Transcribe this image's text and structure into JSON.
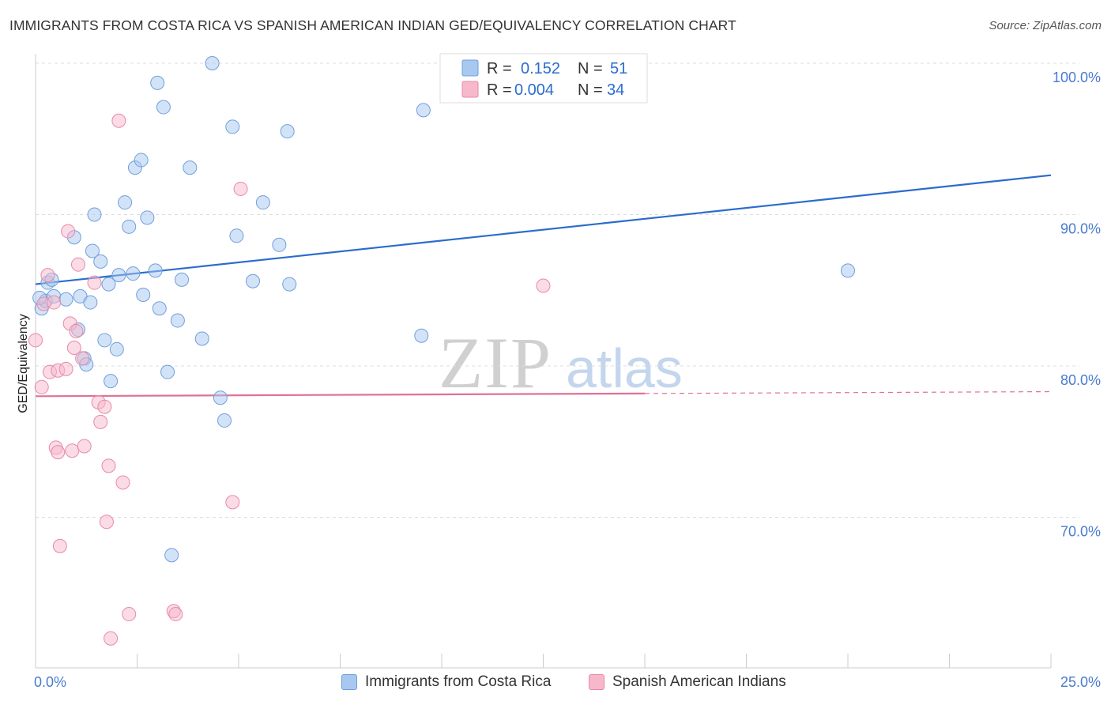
{
  "title": "IMMIGRANTS FROM COSTA RICA VS SPANISH AMERICAN INDIAN GED/EQUIVALENCY CORRELATION CHART",
  "source": "Source: ZipAtlas.com",
  "watermark": {
    "zip": "ZIP",
    "atlas": "atlas"
  },
  "colors": {
    "blue_fill": "#a8c8f0",
    "blue_stroke": "#6f9fdc",
    "blue_line": "#2b6ccc",
    "pink_fill": "#f7b8cc",
    "pink_stroke": "#e88aa8",
    "pink_line": "#e07098",
    "tick_text": "#4a7bd0",
    "grid": "#dddddd"
  },
  "legend_top": [
    {
      "r_label": "R =",
      "r_value": "0.152",
      "n_label": "N =",
      "n_value": "51",
      "series": "blue"
    },
    {
      "r_label": "R =",
      "r_value": "0.004",
      "n_label": "N =",
      "n_value": "34",
      "series": "pink"
    }
  ],
  "chart_data": {
    "type": "scatter",
    "title": "IMMIGRANTS FROM COSTA RICA VS SPANISH AMERICAN INDIAN GED/EQUIVALENCY CORRELATION CHART",
    "xlabel": "",
    "ylabel": "GED/Equivalency",
    "xlim": [
      0,
      25
    ],
    "ylim": [
      60,
      102
    ],
    "x_tick_labels": [
      "0.0%",
      "25.0%"
    ],
    "y_ticks": [
      70,
      80,
      90,
      100
    ],
    "y_tick_labels": [
      "70.0%",
      "80.0%",
      "90.0%",
      "100.0%"
    ],
    "grid": true,
    "legend_position": "bottom",
    "series": [
      {
        "name": "Immigrants from Costa Rica",
        "color": "blue",
        "r": 0.152,
        "n": 51,
        "trend": {
          "x": [
            0,
            25
          ],
          "y": [
            85.4,
            92.6
          ],
          "dashed_from": null
        },
        "points": [
          [
            0.15,
            83.8
          ],
          [
            0.25,
            84.3
          ],
          [
            0.3,
            85.5
          ],
          [
            0.4,
            85.7
          ],
          [
            0.45,
            84.6
          ],
          [
            0.75,
            84.4
          ],
          [
            0.95,
            88.5
          ],
          [
            1.05,
            82.4
          ],
          [
            1.1,
            84.6
          ],
          [
            1.2,
            80.5
          ],
          [
            1.25,
            80.1
          ],
          [
            1.35,
            84.2
          ],
          [
            1.4,
            87.6
          ],
          [
            1.45,
            90.0
          ],
          [
            1.6,
            86.9
          ],
          [
            1.7,
            81.7
          ],
          [
            1.8,
            85.4
          ],
          [
            1.85,
            79.0
          ],
          [
            2.0,
            81.1
          ],
          [
            2.05,
            86.0
          ],
          [
            2.2,
            90.8
          ],
          [
            2.3,
            89.2
          ],
          [
            2.4,
            86.1
          ],
          [
            2.45,
            93.1
          ],
          [
            2.6,
            93.6
          ],
          [
            2.65,
            84.7
          ],
          [
            2.75,
            89.8
          ],
          [
            2.95,
            86.3
          ],
          [
            3.0,
            98.7
          ],
          [
            3.05,
            83.8
          ],
          [
            3.15,
            97.1
          ],
          [
            3.25,
            79.6
          ],
          [
            3.35,
            67.5
          ],
          [
            3.5,
            83.0
          ],
          [
            3.6,
            85.7
          ],
          [
            3.8,
            93.1
          ],
          [
            4.1,
            81.8
          ],
          [
            4.35,
            100.0
          ],
          [
            4.55,
            77.9
          ],
          [
            4.65,
            76.4
          ],
          [
            4.85,
            95.8
          ],
          [
            4.95,
            88.6
          ],
          [
            5.35,
            85.6
          ],
          [
            5.6,
            90.8
          ],
          [
            6.0,
            88.0
          ],
          [
            6.2,
            95.5
          ],
          [
            6.25,
            85.4
          ],
          [
            9.5,
            82.0
          ],
          [
            9.55,
            96.9
          ],
          [
            20.0,
            86.3
          ],
          [
            0.1,
            84.5
          ]
        ]
      },
      {
        "name": "Spanish American Indians",
        "color": "pink",
        "r": 0.004,
        "n": 34,
        "trend": {
          "x": [
            0,
            25
          ],
          "y": [
            78.0,
            78.3
          ],
          "dashed_from": 15
        },
        "points": [
          [
            0.0,
            81.7
          ],
          [
            0.15,
            78.6
          ],
          [
            0.2,
            84.1
          ],
          [
            0.3,
            86.0
          ],
          [
            0.35,
            79.6
          ],
          [
            0.45,
            84.2
          ],
          [
            0.5,
            74.6
          ],
          [
            0.55,
            79.7
          ],
          [
            0.55,
            74.3
          ],
          [
            0.6,
            68.1
          ],
          [
            0.75,
            79.8
          ],
          [
            0.8,
            88.9
          ],
          [
            0.85,
            82.8
          ],
          [
            0.9,
            74.4
          ],
          [
            0.95,
            81.2
          ],
          [
            1.0,
            82.3
          ],
          [
            1.05,
            86.7
          ],
          [
            1.15,
            80.5
          ],
          [
            1.2,
            74.7
          ],
          [
            1.45,
            85.5
          ],
          [
            1.55,
            77.6
          ],
          [
            1.6,
            76.3
          ],
          [
            1.7,
            77.3
          ],
          [
            1.75,
            69.7
          ],
          [
            1.8,
            73.4
          ],
          [
            1.85,
            62.0
          ],
          [
            2.05,
            96.2
          ],
          [
            2.15,
            72.3
          ],
          [
            2.3,
            63.6
          ],
          [
            3.4,
            63.8
          ],
          [
            3.45,
            63.6
          ],
          [
            4.85,
            71.0
          ],
          [
            5.05,
            91.7
          ],
          [
            12.5,
            85.3
          ]
        ]
      }
    ]
  }
}
